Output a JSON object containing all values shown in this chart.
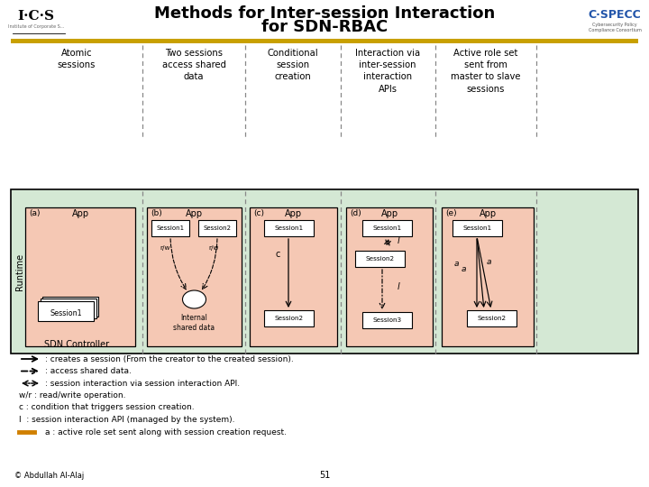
{
  "title_line1": "Methods for Inter-session Interaction",
  "title_line2": "for SDN-RBAC",
  "bg_color": "#ffffff",
  "gold_bar_color": "#C8A000",
  "app_bg": "#f5c8b4",
  "session_bg": "#ffffff",
  "diagram_bg": "#d4e8d4",
  "divider_color": "#888888",
  "orange_bar_color": "#D08000",
  "col_headers": [
    "Atomic\nsessions",
    "Two sessions\naccess shared\ndata",
    "Conditional\nsession\ncreation",
    "Interaction via\ninter-session\ninteraction\nAPIs",
    "Active role set\nsent from\nmaster to slave\nsessions"
  ],
  "copyright_text": "© Abdullah Al-Alaj",
  "page_num": "51"
}
